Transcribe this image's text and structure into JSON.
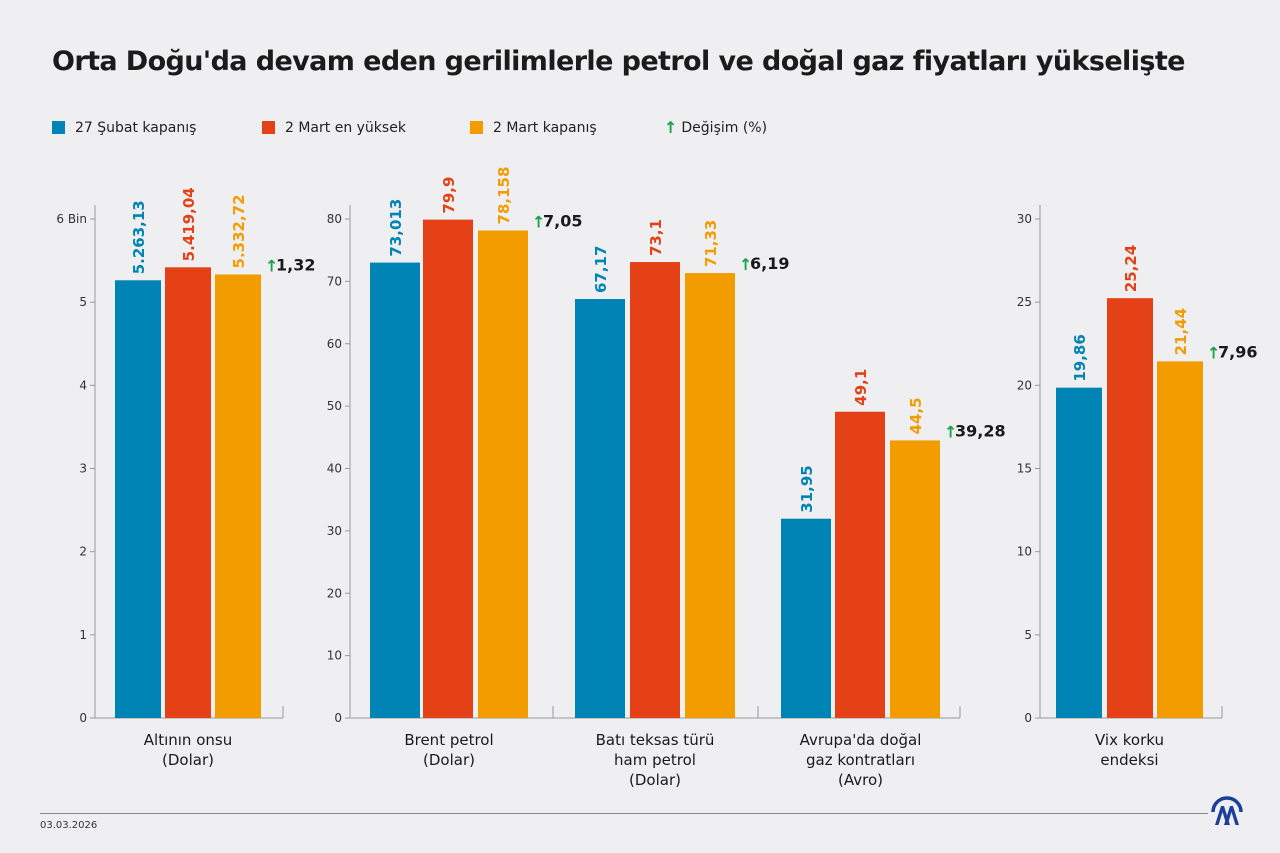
{
  "title": "Orta Doğu'da devam eden gerilimlerle petrol ve doğal gaz fiyatları yükselişte",
  "legend": [
    {
      "label": "27 Şubat kapanış",
      "color": "#0083b5"
    },
    {
      "label": "2 Mart en yüksek",
      "color": "#e44216"
    },
    {
      "label": "2 Mart kapanış",
      "color": "#f39c00"
    },
    {
      "label": "Değişim (%)",
      "icon": "arrow-up-icon",
      "color": "#1aa34a"
    }
  ],
  "date": "03.03.2026",
  "logo": "AA",
  "chart_data": [
    {
      "type": "bar",
      "ylim": [
        0,
        6
      ],
      "yticks": [
        0,
        1,
        2,
        3,
        4,
        5,
        6
      ],
      "ytick_labels": [
        "0",
        "1",
        "2",
        "3",
        "4",
        "5",
        "6 Bin"
      ],
      "groups": [
        {
          "category": [
            "Altının onsu",
            "(Dolar)"
          ],
          "values": [
            5.26313,
            5.41904,
            5.33272
          ],
          "labels": [
            "5.263,13",
            "5.419,04",
            "5.332,72"
          ],
          "change": "1,32"
        }
      ]
    },
    {
      "type": "bar",
      "ylim": [
        0,
        80
      ],
      "yticks": [
        0,
        10,
        20,
        30,
        40,
        50,
        60,
        70,
        80
      ],
      "ytick_labels": [
        "0",
        "10",
        "20",
        "30",
        "40",
        "50",
        "60",
        "70",
        "80"
      ],
      "groups": [
        {
          "category": [
            "Brent petrol",
            "(Dolar)"
          ],
          "values": [
            73.013,
            79.9,
            78.158
          ],
          "labels": [
            "73,013",
            "79,9",
            "78,158"
          ],
          "change": "7,05"
        },
        {
          "category": [
            "Batı teksas türü",
            "ham petrol",
            "(Dolar)"
          ],
          "values": [
            67.17,
            73.1,
            71.33
          ],
          "labels": [
            "67,17",
            "73,1",
            "71,33"
          ],
          "change": "6,19"
        },
        {
          "category": [
            "Avrupa'da doğal",
            "gaz kontratları",
            "(Avro)"
          ],
          "values": [
            31.95,
            49.1,
            44.5
          ],
          "labels": [
            "31,95",
            "49,1",
            "44,5"
          ],
          "change": "39,28"
        }
      ]
    },
    {
      "type": "bar",
      "ylim": [
        0,
        30
      ],
      "yticks": [
        0,
        5,
        10,
        15,
        20,
        25,
        30
      ],
      "ytick_labels": [
        "0",
        "5",
        "10",
        "15",
        "20",
        "25",
        "30"
      ],
      "groups": [
        {
          "category": [
            "Vix korku",
            "endeksi"
          ],
          "values": [
            19.86,
            25.24,
            21.44
          ],
          "labels": [
            "19,86",
            "25,24",
            "21,44"
          ],
          "change": "7,96"
        }
      ]
    }
  ]
}
